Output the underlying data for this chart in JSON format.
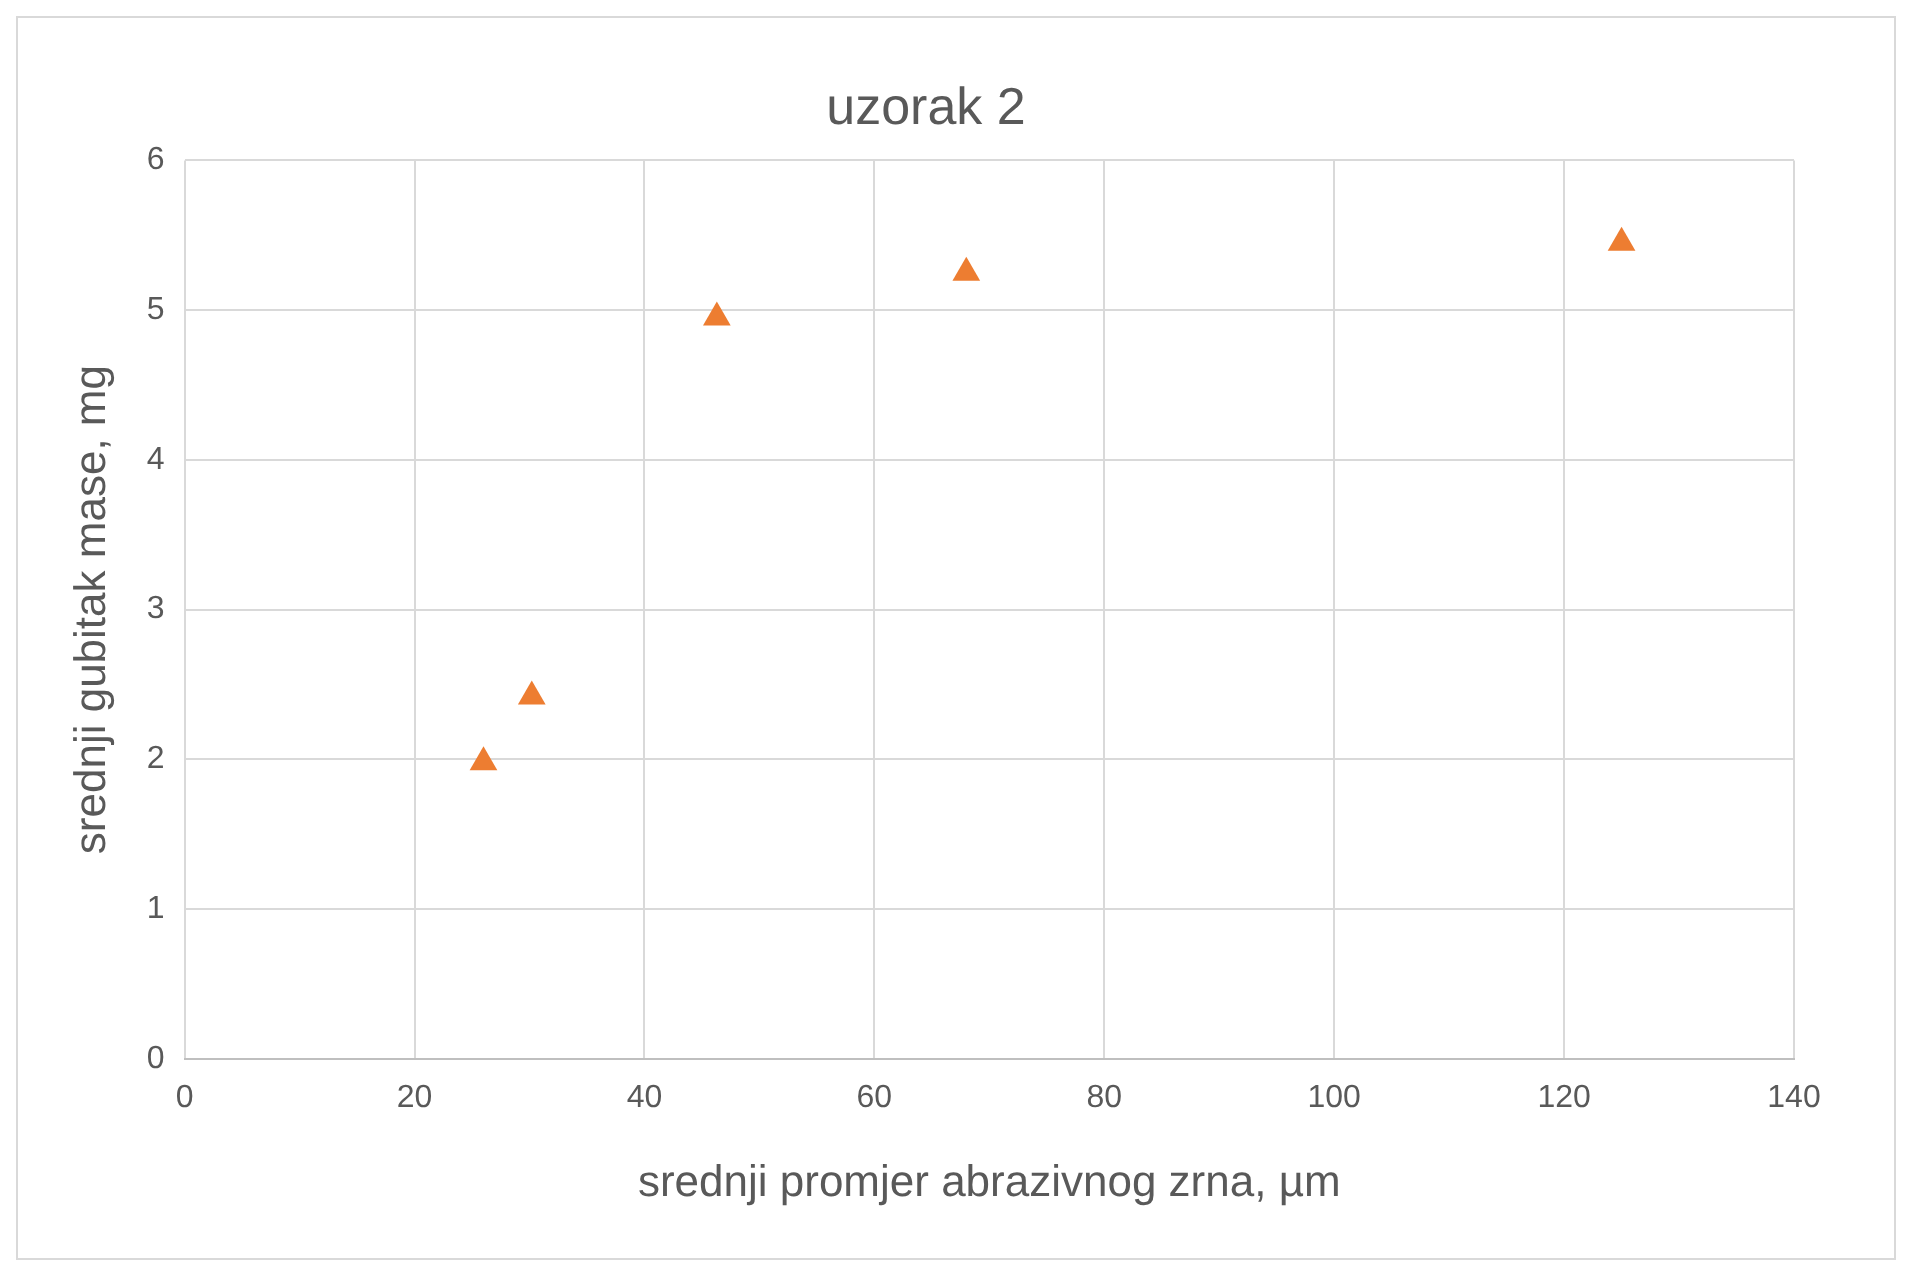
{
  "chart_data": {
    "type": "scatter",
    "title": "uzorak 2",
    "xlabel": "srednji promjer abrazivnog zrna, µm",
    "ylabel": "srednji gubitak mase, mg",
    "x": [
      26,
      30.2,
      46.3,
      68,
      125
    ],
    "series": [
      {
        "color": "#ed7d31",
        "values": [
          1.98,
          2.42,
          4.95,
          5.25,
          5.45
        ]
      }
    ],
    "xlim": [
      0,
      140
    ],
    "xticks": [
      0,
      20,
      40,
      60,
      80,
      100,
      120,
      140
    ],
    "ylim": [
      0,
      6
    ],
    "yticks": [
      0,
      1,
      2,
      3,
      4,
      5,
      6
    ],
    "grid": true,
    "legend": false,
    "marker": "triangle"
  }
}
